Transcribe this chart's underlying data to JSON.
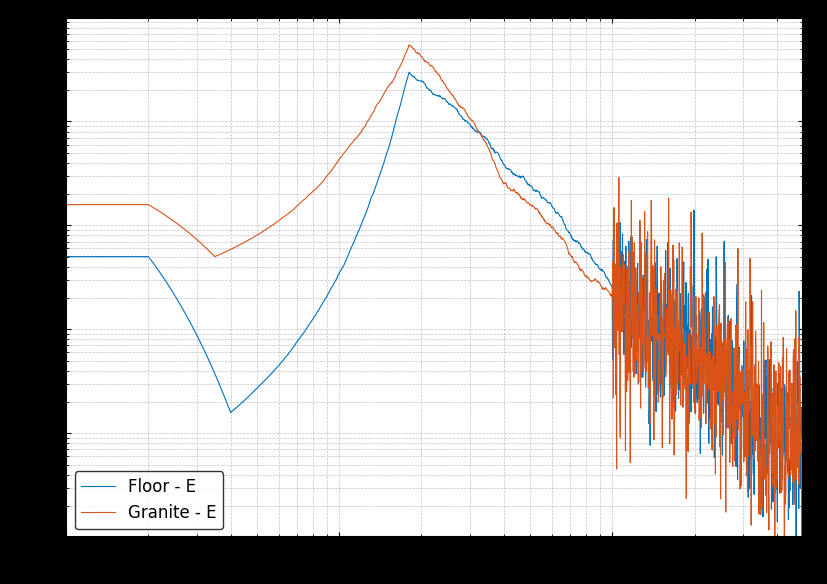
{
  "title": "",
  "xlabel": "",
  "ylabel": "",
  "line1_label": "Floor - E",
  "line2_label": "Granite - E",
  "line1_color": "#0072bd",
  "line2_color": "#d95319",
  "xlim": [
    1,
    500
  ],
  "ylim_log_min": -9,
  "ylim_log_max": -4,
  "background_color": "#ffffff",
  "legend_loc": "lower left",
  "N": 2000
}
